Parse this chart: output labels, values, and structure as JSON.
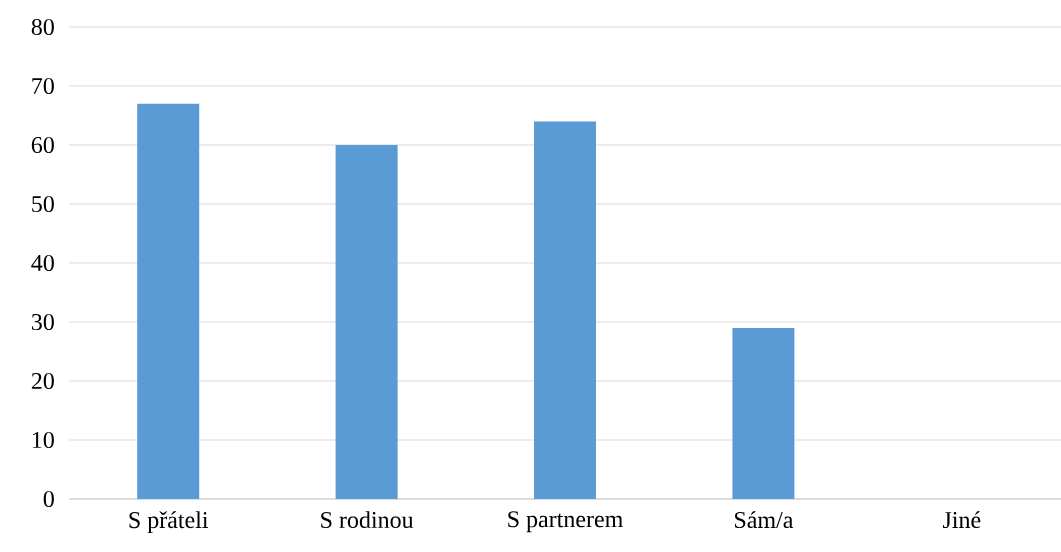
{
  "chart_data": {
    "type": "bar",
    "categories": [
      "S přáteli",
      "S rodinou",
      "S partnerem",
      "Sám/a",
      "Jiné"
    ],
    "values": [
      67,
      60,
      64,
      29,
      0
    ],
    "color": "#5b9bd5",
    "ylim": [
      0,
      80
    ],
    "yticks": [
      0,
      10,
      20,
      30,
      40,
      50,
      60,
      70,
      80
    ],
    "grid": "y"
  }
}
